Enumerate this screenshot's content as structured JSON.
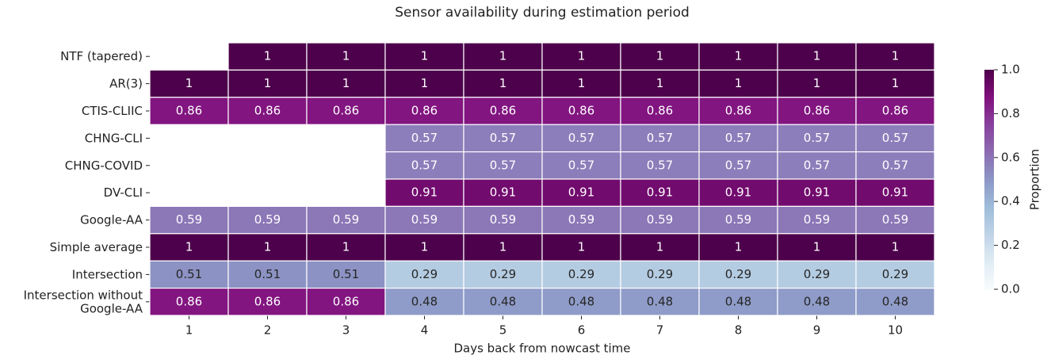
{
  "chart_data": {
    "type": "heatmap",
    "title": "Sensor availability during estimation period",
    "xlabel": "Days back from nowcast time",
    "categories": [
      1,
      2,
      3,
      4,
      5,
      6,
      7,
      8,
      9,
      10
    ],
    "series": [
      {
        "name": "NTF (tapered)",
        "values": [
          null,
          1,
          1,
          1,
          1,
          1,
          1,
          1,
          1,
          1
        ]
      },
      {
        "name": "AR(3)",
        "values": [
          1,
          1,
          1,
          1,
          1,
          1,
          1,
          1,
          1,
          1
        ]
      },
      {
        "name": "CTIS-CLIIC",
        "values": [
          0.86,
          0.86,
          0.86,
          0.86,
          0.86,
          0.86,
          0.86,
          0.86,
          0.86,
          0.86
        ]
      },
      {
        "name": "CHNG-CLI",
        "values": [
          null,
          null,
          null,
          0.57,
          0.57,
          0.57,
          0.57,
          0.57,
          0.57,
          0.57
        ]
      },
      {
        "name": "CHNG-COVID",
        "values": [
          null,
          null,
          null,
          0.57,
          0.57,
          0.57,
          0.57,
          0.57,
          0.57,
          0.57
        ]
      },
      {
        "name": "DV-CLI",
        "values": [
          null,
          null,
          null,
          0.91,
          0.91,
          0.91,
          0.91,
          0.91,
          0.91,
          0.91
        ]
      },
      {
        "name": "Google-AA",
        "values": [
          0.59,
          0.59,
          0.59,
          0.59,
          0.59,
          0.59,
          0.59,
          0.59,
          0.59,
          0.59
        ]
      },
      {
        "name": "Simple average",
        "values": [
          1,
          1,
          1,
          1,
          1,
          1,
          1,
          1,
          1,
          1
        ]
      },
      {
        "name": "Intersection",
        "values": [
          0.51,
          0.51,
          0.51,
          0.29,
          0.29,
          0.29,
          0.29,
          0.29,
          0.29,
          0.29
        ]
      },
      {
        "name": "Intersection without\nGoogle-AA",
        "values": [
          0.86,
          0.86,
          0.86,
          0.48,
          0.48,
          0.48,
          0.48,
          0.48,
          0.48,
          0.48
        ]
      }
    ],
    "colorbar_label": "Proportion",
    "clim": [
      0,
      1
    ],
    "cticks": [
      {
        "value": 0,
        "label": "0.0"
      },
      {
        "value": 0.2,
        "label": "0.2"
      },
      {
        "value": 0.4,
        "label": "0.4"
      },
      {
        "value": 0.6,
        "label": "0.6"
      },
      {
        "value": 0.8,
        "label": "0.8"
      },
      {
        "value": 1,
        "label": "1.0"
      }
    ],
    "colormap": [
      "#f7fcfd",
      "#e0ecf4",
      "#bfd3e6",
      "#9ebcda",
      "#8c96c6",
      "#8c6bb1",
      "#88419d",
      "#810f7c",
      "#4d004b"
    ]
  }
}
